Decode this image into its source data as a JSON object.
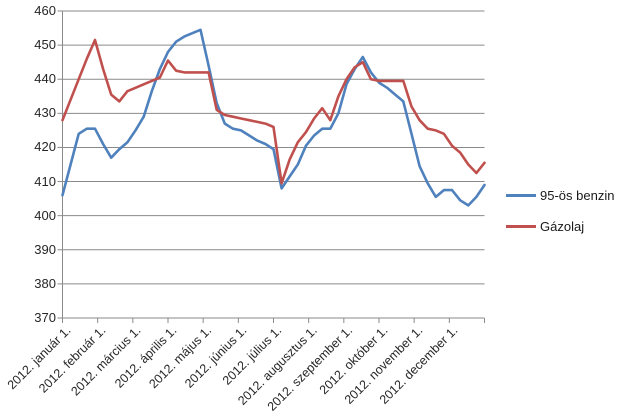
{
  "chart_data": {
    "type": "line",
    "title": "",
    "xlabel": "",
    "ylabel": "",
    "x_axis": {
      "labels": [
        "2012. január 1.",
        "2012. február 1.",
        "2012. március 1.",
        "2012. április 1.",
        "2012. május 1.",
        "2012. június 1.",
        "2012. július 1.",
        "2012. augusztus 1.",
        "2012. szeptember 1.",
        "2012. október 1.",
        "2012. november 1.",
        "2012. december 1."
      ]
    },
    "y_axis": {
      "min": 370,
      "max": 460,
      "step": 10,
      "ticks": [
        460,
        450,
        440,
        430,
        420,
        410,
        400,
        390,
        380,
        370
      ]
    },
    "grid": true,
    "legend_position": "right",
    "series": [
      {
        "name": "95-ös benzin",
        "color": "#4F81BD",
        "values": [
          406,
          415,
          424,
          425.5,
          425.5,
          421,
          417,
          419.5,
          421.5,
          425,
          429,
          436.5,
          443,
          448,
          451,
          452.5,
          453.5,
          454.5,
          444,
          433,
          427,
          425.5,
          425,
          423.5,
          422,
          421,
          419.5,
          408,
          411.5,
          415,
          420.5,
          423.5,
          425.5,
          425.5,
          430,
          438.5,
          443,
          446.5,
          442,
          439,
          437.5,
          435.5,
          433.5,
          424,
          414.5,
          409.5,
          405.5,
          407.5,
          407.5,
          404.5,
          403,
          405.5,
          409
        ]
      },
      {
        "name": "Gázolaj",
        "color": "#C0504D",
        "values": [
          428,
          434,
          440,
          446,
          451.5,
          443,
          435.5,
          433.5,
          436.5,
          437.5,
          438.5,
          439.5,
          440.5,
          445.5,
          442.5,
          442,
          442,
          442,
          442,
          431,
          429.5,
          429,
          428.5,
          428,
          427.5,
          427,
          426,
          409.5,
          416.5,
          421.5,
          424.5,
          428.5,
          431.5,
          428,
          435,
          440,
          443.5,
          445,
          440,
          439.5,
          439.5,
          439.5,
          439.5,
          432,
          428,
          425.5,
          425,
          424,
          420.5,
          418.5,
          415,
          412.5,
          415.5
        ]
      }
    ]
  },
  "style": {
    "grid_color": "#8A8A8A",
    "axis_color": "#8A8A8A",
    "background": "#FFFFFF",
    "text_color": "#262626"
  }
}
